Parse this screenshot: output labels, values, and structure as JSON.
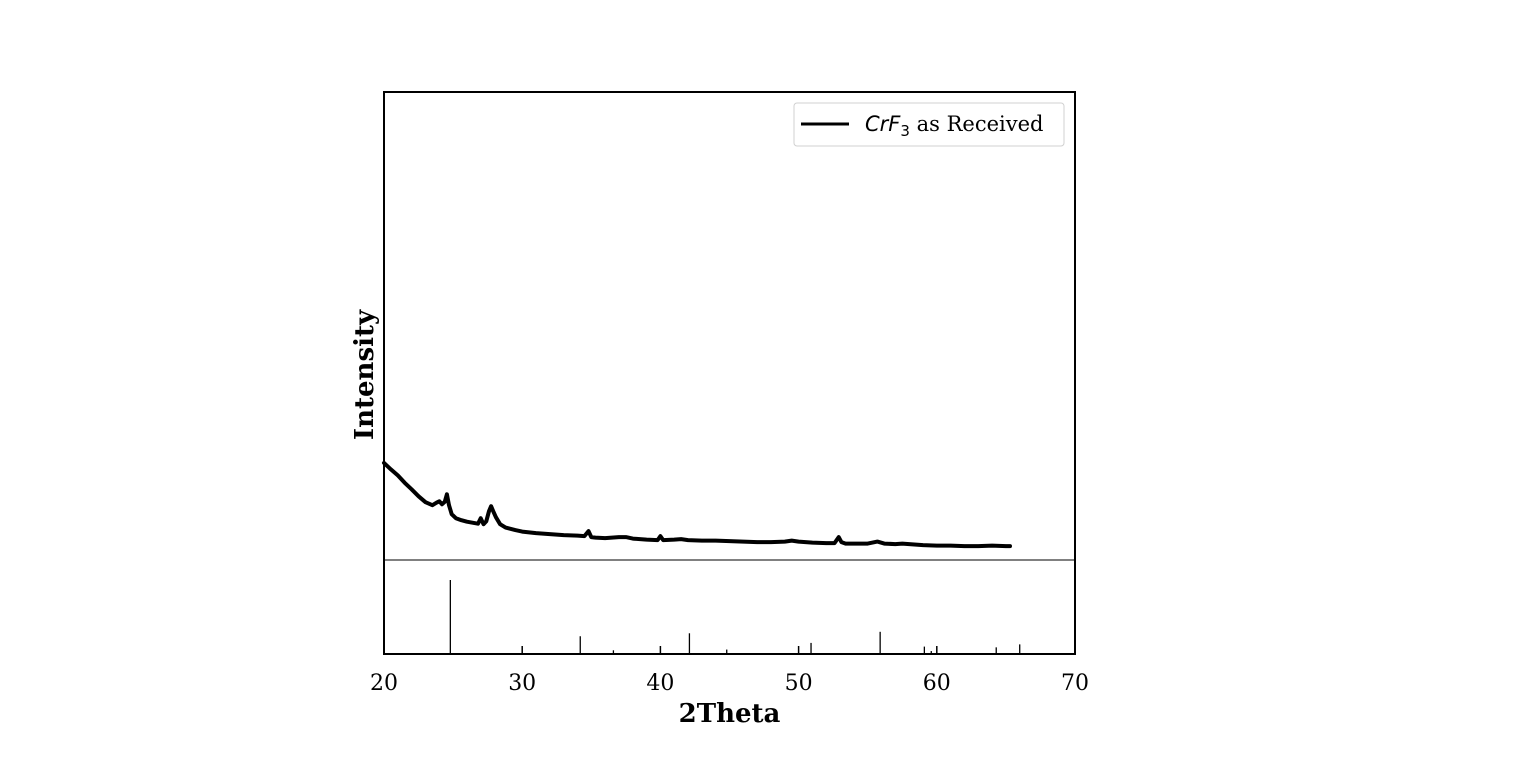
{
  "chart_data": {
    "type": "line",
    "xlabel": "2Theta",
    "ylabel": "Intensity",
    "xlim": [
      20,
      70
    ],
    "x_ticks": [
      "20",
      "30",
      "40",
      "50",
      "60",
      "70"
    ],
    "y_ticks_shown": false,
    "grid": false,
    "legend": {
      "position": "top-right",
      "entries": [
        {
          "series": 0,
          "label_main": "CrF",
          "label_sub": "3",
          "label_tail": " as Received"
        }
      ]
    },
    "series": [
      {
        "name": "CrF3 as Received",
        "color": "#000000",
        "x": [
          20.0,
          20.5,
          21.0,
          21.5,
          22.0,
          22.5,
          23.0,
          23.5,
          23.8,
          24.0,
          24.2,
          24.4,
          24.55,
          24.7,
          24.9,
          25.2,
          25.6,
          26.0,
          26.4,
          26.8,
          27.0,
          27.2,
          27.4,
          27.6,
          27.75,
          27.9,
          28.1,
          28.4,
          28.8,
          29.5,
          30.0,
          31.0,
          32.0,
          33.0,
          34.0,
          34.5,
          34.8,
          35.0,
          35.3,
          36.0,
          37.0,
          37.5,
          38.0,
          39.0,
          39.8,
          40.0,
          40.2,
          41.0,
          41.5,
          42.0,
          43.0,
          44.0,
          45.0,
          46.0,
          47.0,
          48.0,
          49.0,
          49.5,
          50.0,
          51.0,
          52.0,
          52.6,
          52.9,
          53.1,
          53.4,
          54.0,
          55.0,
          55.7,
          56.2,
          57.0,
          57.5,
          58.0,
          59.0,
          60.0,
          61.0,
          62.0,
          63.0,
          64.0,
          65.0,
          65.3
        ],
        "y": [
          1.75,
          1.62,
          1.5,
          1.35,
          1.22,
          1.08,
          0.96,
          0.9,
          0.95,
          0.98,
          0.92,
          0.97,
          1.12,
          0.9,
          0.72,
          0.64,
          0.6,
          0.57,
          0.55,
          0.53,
          0.64,
          0.52,
          0.58,
          0.78,
          0.88,
          0.78,
          0.66,
          0.52,
          0.45,
          0.4,
          0.37,
          0.34,
          0.32,
          0.3,
          0.29,
          0.28,
          0.38,
          0.26,
          0.25,
          0.24,
          0.26,
          0.26,
          0.23,
          0.21,
          0.2,
          0.28,
          0.2,
          0.21,
          0.22,
          0.2,
          0.19,
          0.19,
          0.18,
          0.17,
          0.16,
          0.16,
          0.17,
          0.19,
          0.17,
          0.15,
          0.14,
          0.14,
          0.26,
          0.16,
          0.13,
          0.13,
          0.13,
          0.17,
          0.13,
          0.12,
          0.13,
          0.12,
          0.1,
          0.09,
          0.09,
          0.08,
          0.08,
          0.09,
          0.08,
          0.08
        ],
        "ylim": [
          -0.2,
          9.2
        ]
      }
    ],
    "reference_sticks": {
      "x": [
        24.8,
        34.2,
        36.6,
        42.1,
        44.8,
        50.9,
        55.9,
        59.1,
        59.6,
        64.3,
        66.0
      ],
      "intensity": [
        100,
        24,
        5,
        28,
        6,
        15,
        30,
        10,
        4,
        9,
        13
      ]
    }
  }
}
